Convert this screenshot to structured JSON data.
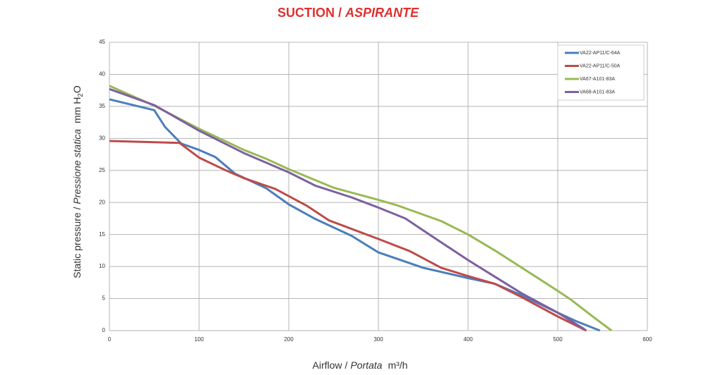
{
  "chart_data": {
    "type": "line",
    "title": [
      "SUCTION /",
      "ASPIRANTE"
    ],
    "xlabel": [
      "Airflow /",
      "Portata",
      "m³/h"
    ],
    "ylabel": [
      "Static pressure /",
      "Pressione statica",
      "mm  H",
      "2",
      "O"
    ],
    "xlim": [
      0,
      600
    ],
    "xticks": [
      0,
      100,
      200,
      300,
      400,
      500,
      600
    ],
    "ylim": [
      0,
      45
    ],
    "yticks": [
      0,
      5,
      10,
      15,
      20,
      25,
      30,
      35,
      40,
      45
    ],
    "grid": true,
    "legend": "upper right",
    "series": [
      {
        "name": "VA22-AP11/C-64A",
        "color": "#4a7ebb",
        "x": [
          0,
          50,
          62,
          80,
          100,
          118,
          140,
          175,
          200,
          230,
          270,
          300,
          350,
          400,
          430,
          460,
          500,
          520,
          547
        ],
        "values": [
          36.1,
          34.4,
          31.8,
          29.2,
          28.2,
          27.1,
          24.5,
          22.2,
          19.7,
          17.4,
          14.8,
          12.2,
          9.8,
          8.2,
          7.3,
          5.5,
          2.8,
          1.5,
          0
        ]
      },
      {
        "name": "VA22-AP11/C-50A",
        "color": "#be4b48",
        "x": [
          0,
          50,
          78,
          100,
          130,
          150,
          185,
          220,
          245,
          300,
          335,
          370,
          400,
          430,
          460,
          500,
          532
        ],
        "values": [
          29.6,
          29.4,
          29.3,
          27,
          25,
          23.8,
          22.1,
          19.5,
          17.2,
          14.3,
          12.4,
          9.8,
          8.5,
          7.3,
          5.2,
          2.2,
          0
        ]
      },
      {
        "name": "VA67-A101-83A",
        "color": "#98b954",
        "x": [
          0,
          50,
          100,
          150,
          175,
          200,
          250,
          300,
          320,
          370,
          400,
          430,
          460,
          500,
          515,
          540,
          560
        ],
        "values": [
          38.2,
          35.1,
          31.5,
          28.2,
          26.8,
          25.2,
          22.3,
          20.4,
          19.6,
          17.1,
          15,
          12.5,
          9.8,
          6.2,
          4.8,
          2.1,
          0
        ]
      },
      {
        "name": "VA68-A101-83A",
        "color": "#7d60a0",
        "x": [
          0,
          50,
          100,
          150,
          200,
          230,
          270,
          300,
          330,
          360,
          400,
          430,
          460,
          500,
          530
        ],
        "values": [
          37.7,
          35.2,
          31.2,
          27.7,
          24.7,
          22.6,
          20.8,
          19.2,
          17.5,
          14.7,
          11,
          8.4,
          5.8,
          2.8,
          0.2
        ]
      }
    ]
  }
}
